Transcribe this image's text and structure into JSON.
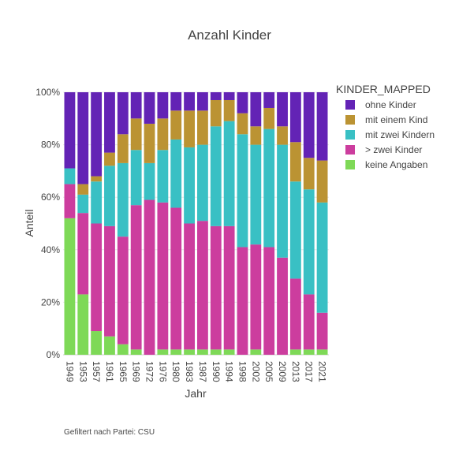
{
  "chart_data": {
    "type": "bar",
    "stacked": true,
    "normalized": true,
    "title": "Anzahl Kinder",
    "xlabel": "Jahr",
    "ylabel": "Anteil",
    "ylim": [
      0,
      1
    ],
    "yticks": [
      "0%",
      "20%",
      "40%",
      "60%",
      "80%",
      "100%"
    ],
    "legend_title": "KINDER_MAPPED",
    "legend_position": "right",
    "categories": [
      "1949",
      "1953",
      "1957",
      "1961",
      "1965",
      "1969",
      "1972",
      "1976",
      "1980",
      "1983",
      "1987",
      "1990",
      "1994",
      "1998",
      "2002",
      "2005",
      "2009",
      "2013",
      "2017",
      "2021"
    ],
    "series": [
      {
        "name": "keine Angaben",
        "color": "#7ED957",
        "values": [
          0.52,
          0.23,
          0.09,
          0.07,
          0.04,
          0.02,
          0.0,
          0.02,
          0.02,
          0.02,
          0.02,
          0.02,
          0.02,
          0.0,
          0.02,
          0.0,
          0.0,
          0.02,
          0.02,
          0.02
        ]
      },
      {
        "name": "> zwei Kinder",
        "color": "#CC3D9E",
        "values": [
          0.13,
          0.31,
          0.41,
          0.42,
          0.41,
          0.55,
          0.59,
          0.56,
          0.54,
          0.48,
          0.49,
          0.47,
          0.47,
          0.41,
          0.4,
          0.41,
          0.37,
          0.27,
          0.21,
          0.14
        ]
      },
      {
        "name": "mit zwei Kindern",
        "color": "#39C0C4",
        "values": [
          0.06,
          0.07,
          0.16,
          0.23,
          0.28,
          0.21,
          0.14,
          0.2,
          0.26,
          0.29,
          0.29,
          0.38,
          0.4,
          0.43,
          0.38,
          0.45,
          0.43,
          0.37,
          0.4,
          0.42
        ]
      },
      {
        "name": "mit einem Kind",
        "color": "#BB9333",
        "values": [
          0.0,
          0.04,
          0.02,
          0.05,
          0.11,
          0.12,
          0.15,
          0.12,
          0.11,
          0.14,
          0.13,
          0.1,
          0.08,
          0.08,
          0.07,
          0.08,
          0.07,
          0.15,
          0.12,
          0.16
        ]
      },
      {
        "name": "ohne Kinder",
        "color": "#6323B5",
        "values": [
          0.29,
          0.35,
          0.32,
          0.23,
          0.16,
          0.1,
          0.12,
          0.1,
          0.07,
          0.07,
          0.07,
          0.03,
          0.03,
          0.08,
          0.13,
          0.06,
          0.13,
          0.19,
          0.25,
          0.26
        ]
      }
    ],
    "legend_order": [
      "ohne Kinder",
      "mit einem Kind",
      "mit zwei Kindern",
      "> zwei Kinder",
      "keine Angaben"
    ],
    "grid": true
  },
  "annotation": "Gefiltert nach Partei: CSU"
}
